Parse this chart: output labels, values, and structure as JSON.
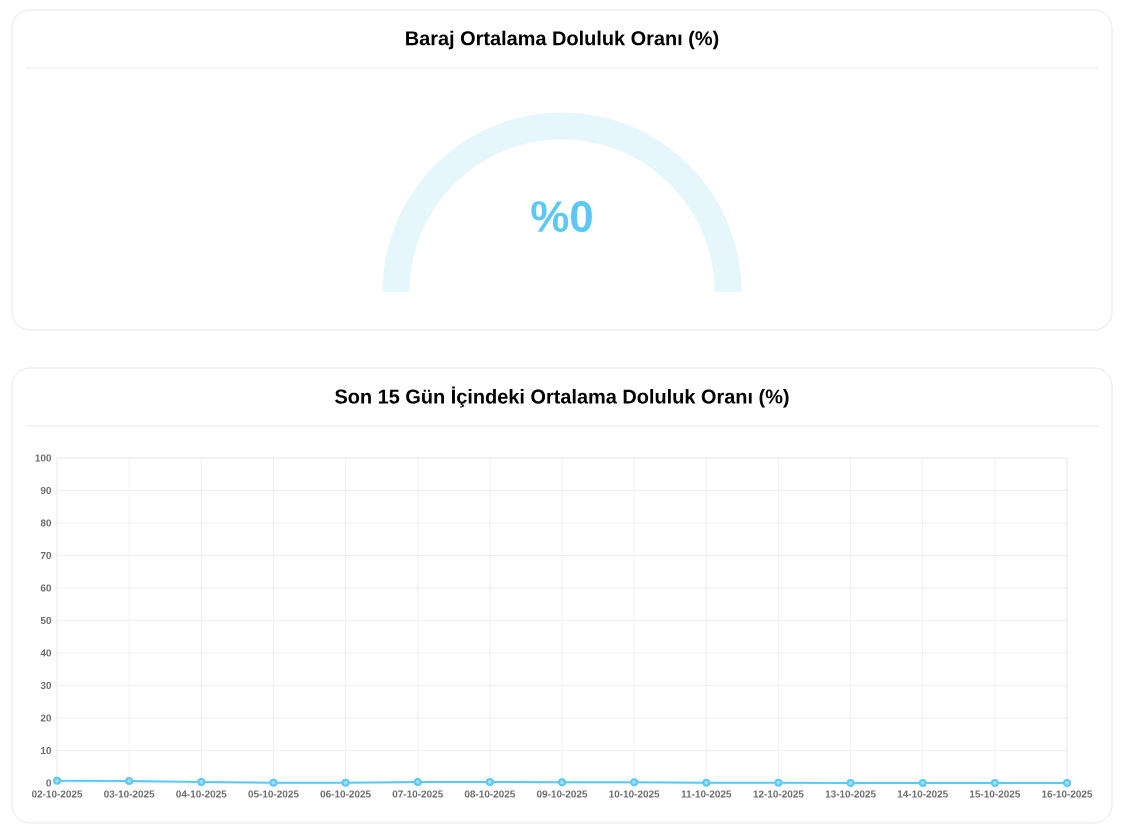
{
  "chart_data": [
    {
      "type": "pie",
      "title": "Baraj Ortalama Doluluk Oranı (%)",
      "categories": [
        null,
        null
      ],
      "values": [
        0,
        100
      ],
      "colors": [
        "#5bc8f5",
        "#e6f6fd"
      ],
      "value_labels": [
        "%0",
        null
      ]
    },
    {
      "type": "line",
      "title": "Son 15 Gün İçindeki Ortalama Doluluk Oranı (%)",
      "categories": [
        "02-10-2025",
        "03-10-2025",
        "04-10-2025",
        "05-10-2025",
        "06-10-2025",
        "07-10-2025",
        "08-10-2025",
        "09-10-2025",
        "10-10-2025",
        "11-10-2025",
        "12-10-2025",
        "13-10-2025",
        "14-10-2025",
        "15-10-2025",
        "16-10-2025"
      ],
      "values": [
        0.7,
        0.6,
        0.3,
        0.1,
        0.1,
        0.3,
        0.3,
        0.2,
        0.2,
        0.1,
        0.1,
        0,
        0,
        0,
        0
      ],
      "color": "#5bc8f5",
      "ylim": [
        0,
        100
      ],
      "yticks": [
        0,
        10,
        20,
        30,
        40,
        50,
        60,
        70,
        80,
        90,
        100
      ],
      "grid": true,
      "marker": "circle"
    }
  ]
}
